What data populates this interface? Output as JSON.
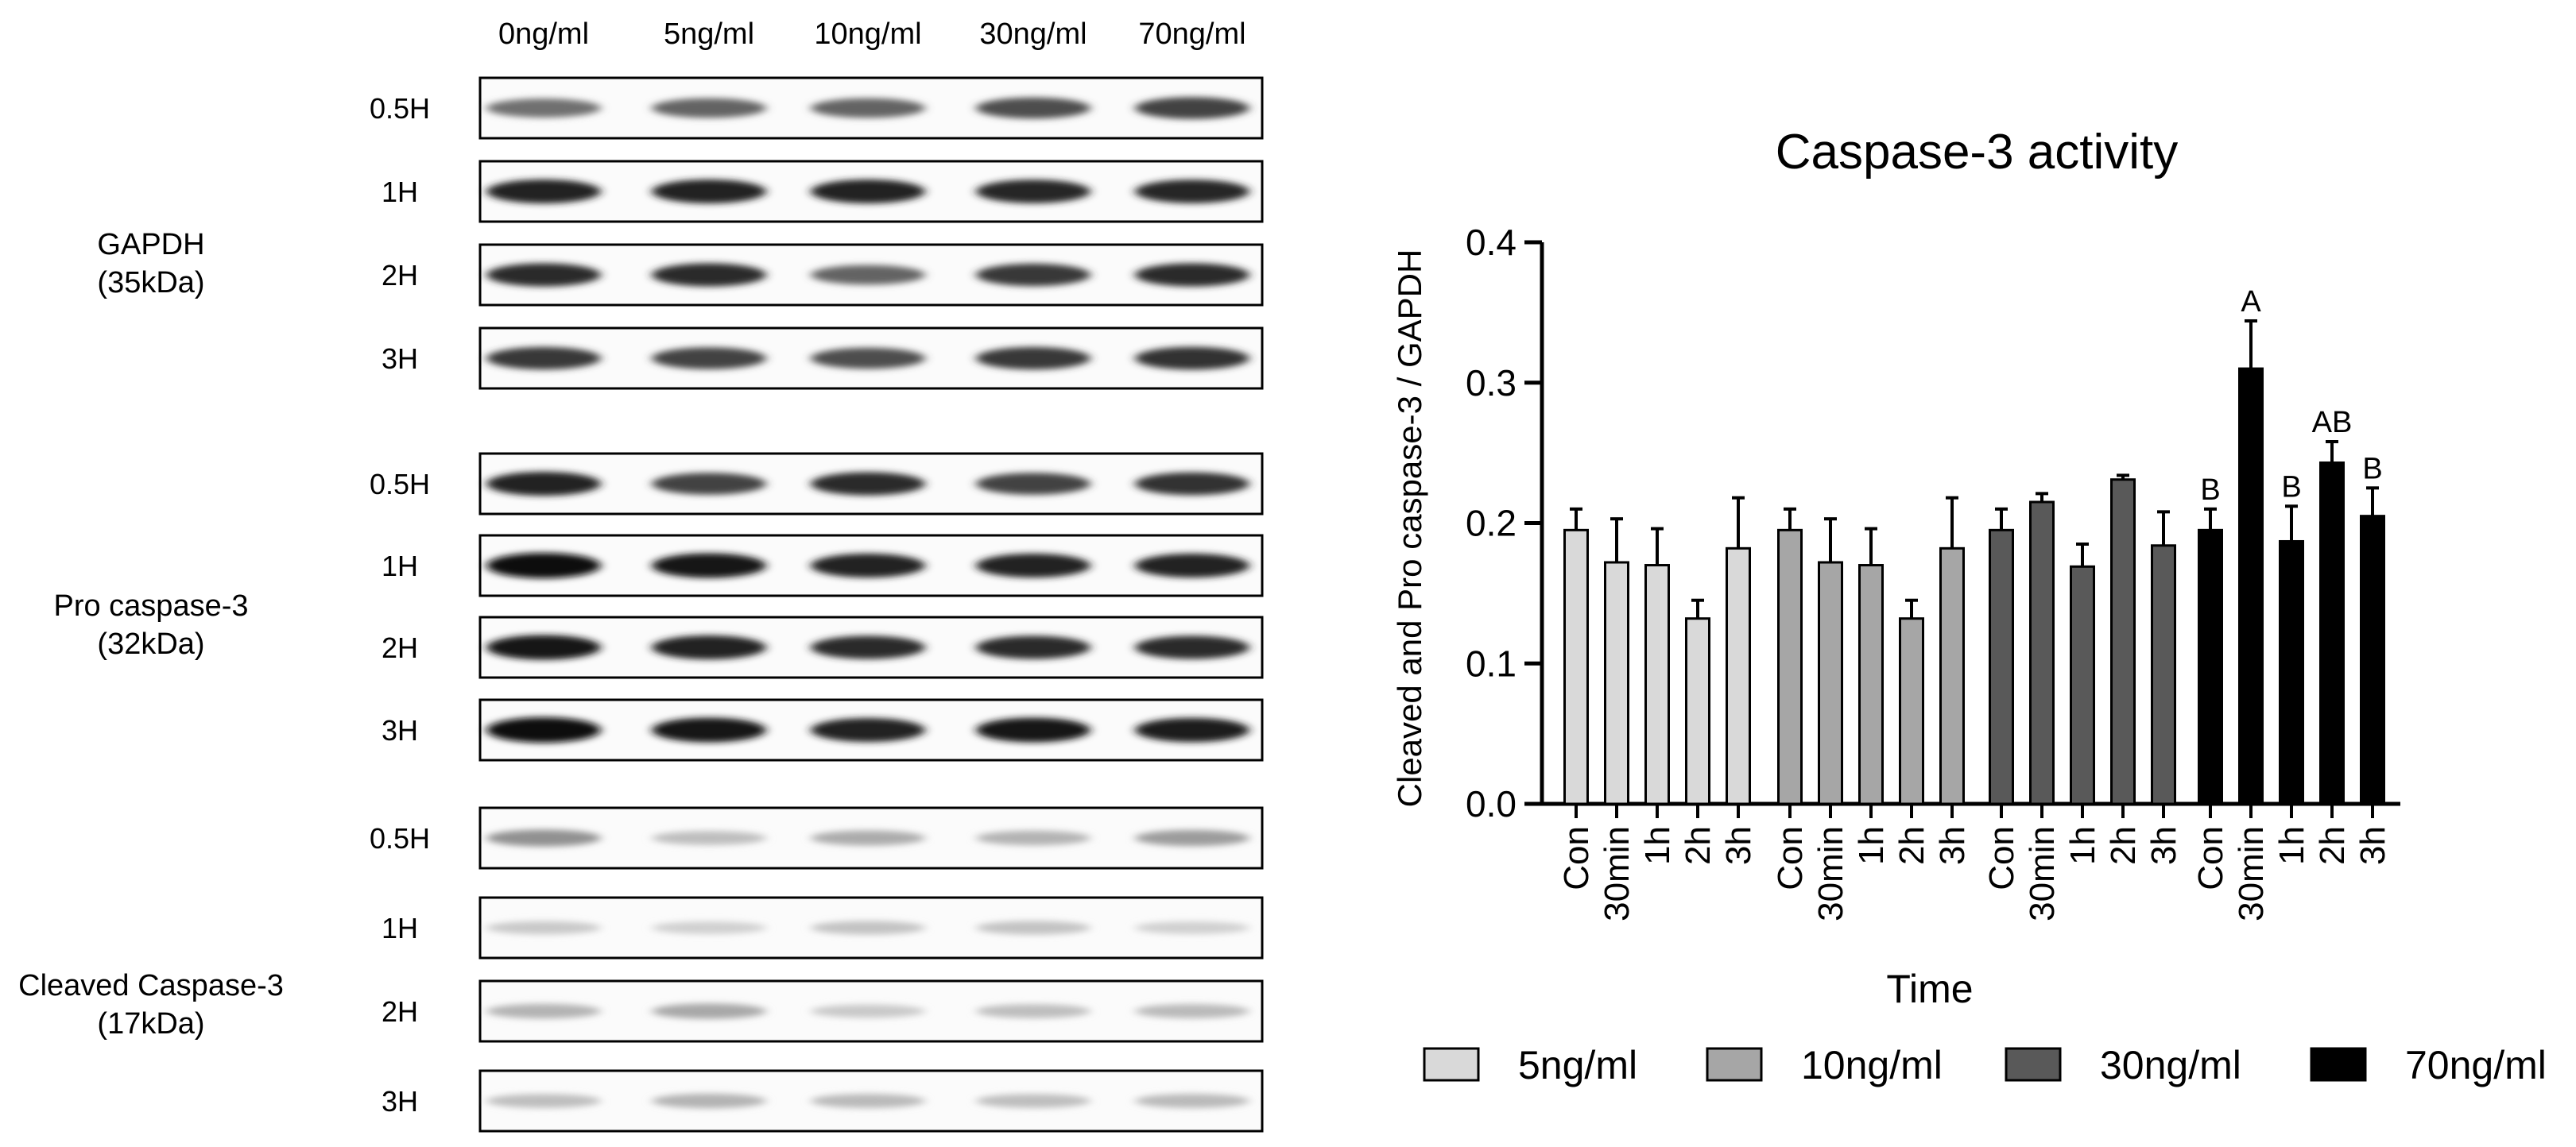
{
  "blot": {
    "lane_labels": [
      "0ng/ml",
      "5ng/ml",
      "10ng/ml",
      "30ng/ml",
      "70ng/ml"
    ],
    "row_labels": [
      "0.5H",
      "1H",
      "2H",
      "3H"
    ],
    "panels": [
      {
        "name_line1": "GAPDH",
        "name_line2": "(35kDa)",
        "band_intensity": [
          [
            0.55,
            0.6,
            0.6,
            0.7,
            0.75
          ],
          [
            0.9,
            0.9,
            0.9,
            0.88,
            0.88
          ],
          [
            0.85,
            0.85,
            0.6,
            0.8,
            0.85
          ],
          [
            0.8,
            0.75,
            0.7,
            0.8,
            0.82
          ]
        ]
      },
      {
        "name_line1": "Pro caspase-3",
        "name_line2": "(32kDa)",
        "band_intensity": [
          [
            0.9,
            0.75,
            0.85,
            0.75,
            0.82
          ],
          [
            1.0,
            0.95,
            0.9,
            0.9,
            0.9
          ],
          [
            0.95,
            0.9,
            0.85,
            0.85,
            0.85
          ],
          [
            1.0,
            0.95,
            0.9,
            0.95,
            0.92
          ]
        ]
      },
      {
        "name_line1": "Cleaved Caspase-3",
        "name_line2": "(17kDa)",
        "band_intensity": [
          [
            0.4,
            0.2,
            0.28,
            0.25,
            0.35
          ],
          [
            0.15,
            0.12,
            0.18,
            0.18,
            0.12
          ],
          [
            0.25,
            0.3,
            0.15,
            0.2,
            0.22
          ],
          [
            0.2,
            0.25,
            0.22,
            0.2,
            0.22
          ]
        ]
      }
    ]
  },
  "chart_data": {
    "type": "bar",
    "title": "Caspase-3 activity",
    "xlabel": "Time",
    "ylabel": "Cleaved and Pro caspase-3 / GAPDH",
    "ylim": [
      0,
      0.4
    ],
    "yticks": [
      "0.0",
      "0.1",
      "0.2",
      "0.3",
      "0.4"
    ],
    "categories": [
      "Con",
      "30min",
      "1h",
      "2h",
      "3h"
    ],
    "legend_position": "bottom",
    "series": [
      {
        "name": "5ng/ml",
        "color": "#d9d9d9",
        "values": [
          0.195,
          0.172,
          0.17,
          0.132,
          0.182
        ],
        "errors": [
          0.015,
          0.031,
          0.026,
          0.013,
          0.036
        ],
        "annotations": [
          "",
          "",
          "",
          "",
          ""
        ]
      },
      {
        "name": "10ng/ml",
        "color": "#a6a6a6",
        "values": [
          0.195,
          0.172,
          0.17,
          0.132,
          0.182
        ],
        "errors": [
          0.015,
          0.031,
          0.026,
          0.013,
          0.036
        ],
        "annotations": [
          "",
          "",
          "",
          "",
          ""
        ]
      },
      {
        "name": "30ng/ml",
        "color": "#595959",
        "values": [
          0.195,
          0.215,
          0.169,
          0.231,
          0.184
        ],
        "errors": [
          0.015,
          0.006,
          0.016,
          0.003,
          0.024
        ],
        "annotations": [
          "",
          "",
          "",
          "",
          ""
        ]
      },
      {
        "name": "70ng/ml",
        "color": "#000000",
        "values": [
          0.195,
          0.31,
          0.187,
          0.243,
          0.205
        ],
        "errors": [
          0.015,
          0.034,
          0.025,
          0.015,
          0.02
        ],
        "annotations": [
          "B",
          "A",
          "B",
          "AB",
          "B"
        ]
      }
    ]
  }
}
